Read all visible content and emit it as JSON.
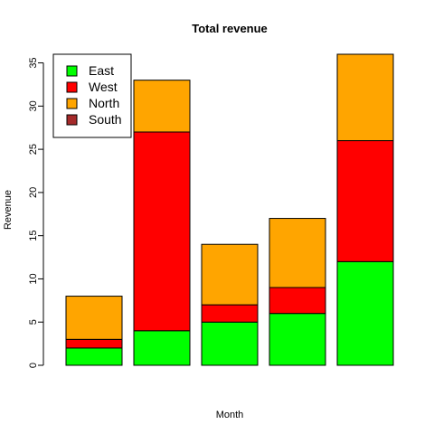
{
  "chart_data": {
    "type": "bar",
    "stacked": true,
    "title": "Total revenue",
    "xlabel": "Month",
    "ylabel": "Revenue",
    "ylim": [
      0,
      36
    ],
    "yticks": [
      0,
      5,
      10,
      15,
      20,
      25,
      30,
      35
    ],
    "categories": [
      "",
      "",
      "",
      "",
      ""
    ],
    "series": [
      {
        "name": "East",
        "color": "#00ff00",
        "values": [
          2,
          4,
          5,
          6,
          12
        ]
      },
      {
        "name": "West",
        "color": "#ff0000",
        "values": [
          1,
          23,
          2,
          3,
          14
        ]
      },
      {
        "name": "North",
        "color": "#ffa500",
        "values": [
          5,
          6,
          7,
          8,
          10
        ]
      },
      {
        "name": "South",
        "color": "#a52a2a",
        "values": [
          0,
          0,
          0,
          0,
          0
        ]
      }
    ],
    "grid": false,
    "legend_position": "top-left"
  }
}
